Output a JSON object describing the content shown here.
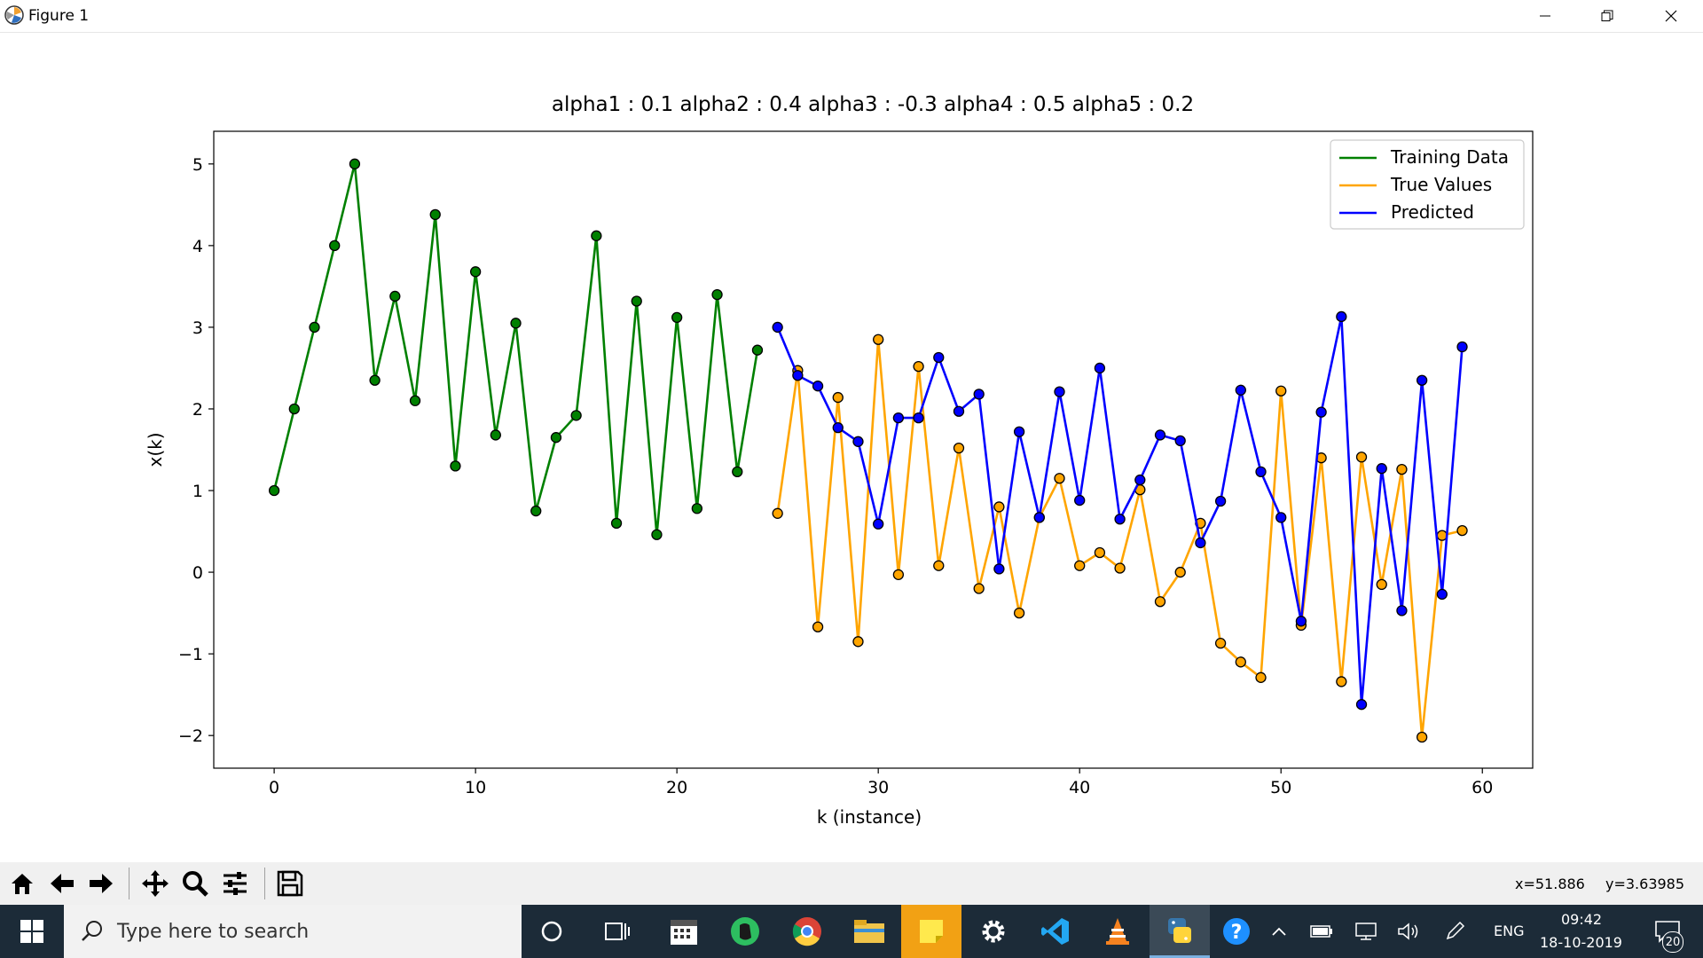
{
  "window": {
    "title": "Figure 1",
    "min_label": "—",
    "restore_label": "❐",
    "close_label": "✕"
  },
  "chart_data": {
    "type": "line",
    "title": "alpha1 : 0.1 alpha2 : 0.4 alpha3 : -0.3 alpha4 : 0.5 alpha5 : 0.2",
    "xlabel": "k (instance)",
    "ylabel": "x(k)",
    "xlim": [
      -3,
      62.5
    ],
    "ylim": [
      -2.4,
      5.4
    ],
    "xticks": [
      0,
      10,
      20,
      30,
      40,
      50,
      60
    ],
    "yticks": [
      -2,
      -1,
      0,
      1,
      2,
      3,
      4,
      5
    ],
    "xtick_labels": [
      "0",
      "10",
      "20",
      "30",
      "40",
      "50",
      "60"
    ],
    "ytick_labels": [
      "−2",
      "−1",
      "0",
      "1",
      "2",
      "3",
      "4",
      "5"
    ],
    "grid": false,
    "legend_position": "top-right",
    "series": [
      {
        "name": "Training Data",
        "color": "#008000",
        "x": [
          0,
          1,
          2,
          3,
          4,
          5,
          6,
          7,
          8,
          9,
          10,
          11,
          12,
          13,
          14,
          15,
          16,
          17,
          18,
          19,
          20,
          21,
          22,
          23,
          24
        ],
        "y": [
          1.0,
          2.0,
          3.0,
          4.0,
          5.0,
          2.35,
          3.38,
          2.1,
          4.38,
          1.3,
          3.68,
          1.68,
          3.05,
          0.75,
          1.65,
          1.92,
          4.12,
          0.6,
          3.32,
          0.46,
          3.12,
          0.78,
          3.4,
          1.23,
          2.72
        ]
      },
      {
        "name": "True Values",
        "color": "#ffa500",
        "x": [
          25,
          26,
          27,
          28,
          29,
          30,
          31,
          32,
          33,
          34,
          35,
          36,
          37,
          38,
          39,
          40,
          41,
          42,
          43,
          44,
          45,
          46,
          47,
          48,
          49,
          50,
          51,
          52,
          53,
          54,
          55,
          56,
          57,
          58,
          59
        ],
        "y": [
          0.72,
          2.47,
          -0.67,
          2.14,
          -0.85,
          2.85,
          -0.03,
          2.52,
          0.08,
          1.52,
          -0.2,
          0.8,
          -0.5,
          0.67,
          1.15,
          0.08,
          0.24,
          0.05,
          1.01,
          -0.36,
          0.0,
          0.6,
          -0.87,
          -1.1,
          -1.29,
          2.22,
          -0.65,
          1.4,
          -1.34,
          1.41,
          -0.15,
          1.26,
          -2.02,
          0.45,
          0.51
        ]
      },
      {
        "name": "Predicted",
        "color": "#0000ff",
        "x": [
          25,
          26,
          27,
          28,
          29,
          30,
          31,
          32,
          33,
          34,
          35,
          36,
          37,
          38,
          39,
          40,
          41,
          42,
          43,
          44,
          45,
          46,
          47,
          48,
          49,
          50,
          51,
          52,
          53,
          54,
          55,
          56,
          57,
          58,
          59
        ],
        "y": [
          3.0,
          2.41,
          2.28,
          1.77,
          1.6,
          0.59,
          1.89,
          1.89,
          2.63,
          1.97,
          2.18,
          0.04,
          1.72,
          0.67,
          2.21,
          0.88,
          2.5,
          0.65,
          1.13,
          1.68,
          1.61,
          0.36,
          0.87,
          2.23,
          1.23,
          0.67,
          -0.6,
          1.96,
          3.13,
          -1.62,
          1.27,
          -0.47,
          2.35,
          -0.27,
          2.76
        ]
      }
    ]
  },
  "toolbar": {
    "buttons": [
      {
        "name": "home-button",
        "icon": "home-icon"
      },
      {
        "name": "back-button",
        "icon": "arrow-left-icon"
      },
      {
        "name": "forward-button",
        "icon": "arrow-right-icon"
      },
      {
        "name": "pan-button",
        "icon": "move-icon"
      },
      {
        "name": "zoom-button",
        "icon": "magnifier-icon"
      },
      {
        "name": "configure-subplots-button",
        "icon": "sliders-icon"
      },
      {
        "name": "save-button",
        "icon": "floppy-icon"
      }
    ],
    "coord_x": "x=51.886",
    "coord_y": "y=3.63985"
  },
  "taskbar": {
    "search_placeholder": "Type here to search",
    "language": "ENG",
    "time": "09:42",
    "date": "18-10-2019",
    "notification_count": "20",
    "apps": [
      "cortana-icon",
      "task-view-icon",
      "calendar-icon",
      "evernote-icon",
      "chrome-icon",
      "file-explorer-icon",
      "sticky-notes-icon",
      "settings-icon",
      "vscode-icon",
      "vlc-icon",
      "python-icon",
      "help-icon"
    ]
  }
}
